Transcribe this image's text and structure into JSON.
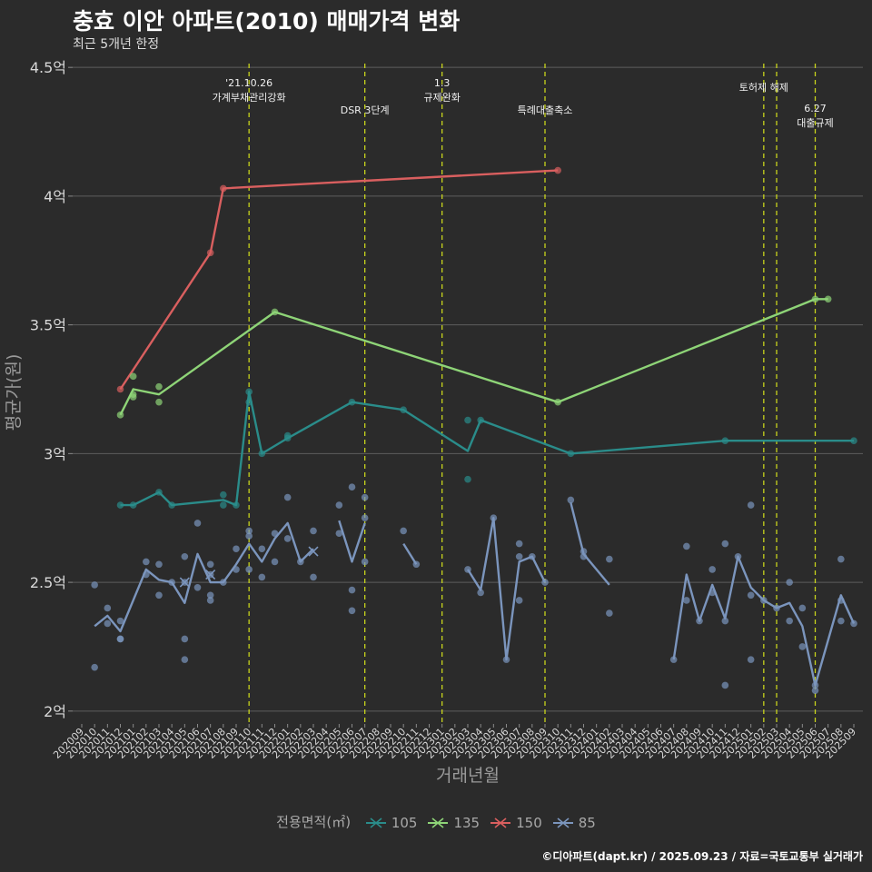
{
  "header": {
    "title": "충효 이안 아파트(2010) 매매가격 변화",
    "subtitle": "최근 5개년 한정"
  },
  "caption": "©디아파트(dapt.kr) / 2025.09.23 / 자료=국토교통부 실거래가",
  "legend": {
    "title": "전용면적(㎡)",
    "items": [
      {
        "label": "105",
        "color": "#2a8c8a"
      },
      {
        "label": "135",
        "color": "#8ed477"
      },
      {
        "label": "150",
        "color": "#d95f5f"
      },
      {
        "label": "85",
        "color": "#7b95bd"
      }
    ]
  },
  "chart_data": {
    "type": "line",
    "title": "충효 이안 아파트(2010) 매매가격 변화",
    "subtitle": "최근 5개년 한정",
    "xlabel": "거래년월",
    "ylabel": "평균가(원)",
    "ylim": [
      1.95,
      4.55
    ],
    "yticks": [
      2,
      2.5,
      3,
      3.5,
      4,
      4.5
    ],
    "ytick_labels": [
      "2억",
      "2.5억",
      "3억",
      "3.5억",
      "4억",
      "4.5억"
    ],
    "x_categories": [
      "202009",
      "202010",
      "202011",
      "202012",
      "202101",
      "202102",
      "202103",
      "202104",
      "202105",
      "202106",
      "202107",
      "202108",
      "202109",
      "202110",
      "202111",
      "202112",
      "202201",
      "202202",
      "202203",
      "202204",
      "202205",
      "202206",
      "202207",
      "202208",
      "202209",
      "202210",
      "202211",
      "202212",
      "202301",
      "202302",
      "202303",
      "202304",
      "202305",
      "202306",
      "202307",
      "202308",
      "202309",
      "202310",
      "202311",
      "202312",
      "202401",
      "202402",
      "202403",
      "202404",
      "202405",
      "202406",
      "202407",
      "202408",
      "202409",
      "202410",
      "202411",
      "202412",
      "202501",
      "202502",
      "202503",
      "202504",
      "202505",
      "202506",
      "202507",
      "202508",
      "202509"
    ],
    "grid": true,
    "legend_position": "bottom",
    "events": [
      {
        "x": "202110",
        "label": "'21.10.26\n가계부채관리강화"
      },
      {
        "x": "202207",
        "label": "DSR 3단계"
      },
      {
        "x": "202301",
        "label": "1.3\n규제완화"
      },
      {
        "x": "202309",
        "label": "특례대출축소"
      },
      {
        "x": "202502",
        "label": "토허제 해제"
      },
      {
        "x": "202503",
        "label": ""
      },
      {
        "x": "202506",
        "label": "6.27\n대출규제"
      }
    ],
    "series": [
      {
        "name": "105",
        "color": "#2a8c8a",
        "line": [
          [
            "202012",
            2.8
          ],
          [
            "202101",
            2.8
          ],
          [
            "202103",
            2.85
          ],
          [
            "202104",
            2.8
          ],
          [
            "202108",
            2.82
          ],
          [
            "202109",
            2.8
          ],
          [
            "202110",
            3.24
          ],
          [
            "202111",
            3.0
          ],
          [
            "202201",
            3.06
          ],
          [
            "202206",
            3.2
          ],
          [
            "202210",
            3.17
          ],
          [
            "202303",
            3.01
          ],
          [
            "202304",
            3.13
          ],
          [
            "202311",
            3.0
          ],
          [
            "202411",
            3.05
          ],
          [
            "202509",
            3.05
          ]
        ],
        "points": [
          [
            "202012",
            2.8
          ],
          [
            "202101",
            2.8
          ],
          [
            "202103",
            2.85
          ],
          [
            "202104",
            2.8
          ],
          [
            "202108",
            2.84
          ],
          [
            "202108",
            2.8
          ],
          [
            "202109",
            2.8
          ],
          [
            "202110",
            3.24
          ],
          [
            "202110",
            3.2
          ],
          [
            "202111",
            3.0
          ],
          [
            "202201",
            3.07
          ],
          [
            "202201",
            3.06
          ],
          [
            "202206",
            3.2
          ],
          [
            "202210",
            3.17
          ],
          [
            "202303",
            3.13
          ],
          [
            "202303",
            2.9
          ],
          [
            "202304",
            3.13
          ],
          [
            "202311",
            3.0
          ],
          [
            "202411",
            3.05
          ],
          [
            "202509",
            3.05
          ]
        ]
      },
      {
        "name": "135",
        "color": "#8ed477",
        "line": [
          [
            "202012",
            3.15
          ],
          [
            "202101",
            3.25
          ],
          [
            "202103",
            3.23
          ],
          [
            "202112",
            3.55
          ],
          [
            "202310",
            3.2
          ],
          [
            "202506",
            3.6
          ],
          [
            "202507",
            3.6
          ]
        ],
        "points": [
          [
            "202012",
            3.15
          ],
          [
            "202101",
            3.3
          ],
          [
            "202101",
            3.23
          ],
          [
            "202101",
            3.22
          ],
          [
            "202103",
            3.26
          ],
          [
            "202103",
            3.2
          ],
          [
            "202112",
            3.55
          ],
          [
            "202310",
            3.2
          ],
          [
            "202506",
            3.6
          ],
          [
            "202507",
            3.6
          ]
        ]
      },
      {
        "name": "150",
        "color": "#d95f5f",
        "line": [
          [
            "202012",
            3.25
          ],
          [
            "202107",
            3.78
          ],
          [
            "202108",
            4.03
          ],
          [
            "202310",
            4.1
          ]
        ],
        "points": [
          [
            "202012",
            3.25
          ],
          [
            "202107",
            3.78
          ],
          [
            "202108",
            4.03
          ],
          [
            "202310",
            4.1
          ]
        ]
      },
      {
        "name": "85",
        "color": "#7b95bd",
        "segments": [
          [
            [
              "202010",
              2.33
            ],
            [
              "202011",
              2.37
            ],
            [
              "202012",
              2.31
            ],
            [
              "202102",
              2.55
            ],
            [
              "202103",
              2.51
            ],
            [
              "202104",
              2.5
            ],
            [
              "202105",
              2.42
            ],
            [
              "202106",
              2.61
            ],
            [
              "202107",
              2.5
            ],
            [
              "202108",
              2.5
            ],
            [
              "202109",
              2.57
            ],
            [
              "202110",
              2.65
            ],
            [
              "202111",
              2.58
            ],
            [
              "202112",
              2.67
            ],
            [
              "202201",
              2.73
            ],
            [
              "202202",
              2.58
            ],
            [
              "202203",
              2.63
            ]
          ],
          [
            [
              "202205",
              2.74
            ],
            [
              "202206",
              2.58
            ],
            [
              "202207",
              2.73
            ]
          ],
          [
            [
              "202210",
              2.65
            ],
            [
              "202211",
              2.57
            ]
          ],
          [
            [
              "202303",
              2.55
            ],
            [
              "202304",
              2.47
            ],
            [
              "202305",
              2.75
            ],
            [
              "202306",
              2.2
            ],
            [
              "202307",
              2.58
            ],
            [
              "202308",
              2.6
            ],
            [
              "202309",
              2.5
            ]
          ],
          [
            [
              "202311",
              2.81
            ],
            [
              "202312",
              2.61
            ],
            [
              "202402",
              2.49
            ]
          ],
          [
            [
              "202407",
              2.2
            ],
            [
              "202408",
              2.53
            ],
            [
              "202409",
              2.35
            ],
            [
              "202410",
              2.49
            ],
            [
              "202411",
              2.36
            ],
            [
              "202412",
              2.6
            ],
            [
              "202501",
              2.48
            ],
            [
              "202502",
              2.43
            ],
            [
              "202503",
              2.4
            ],
            [
              "202504",
              2.42
            ],
            [
              "202505",
              2.33
            ],
            [
              "202506",
              2.1
            ],
            [
              "202508",
              2.45
            ],
            [
              "202509",
              2.34
            ]
          ]
        ],
        "points": [
          [
            "202010",
            2.49
          ],
          [
            "202010",
            2.17
          ],
          [
            "202011",
            2.4
          ],
          [
            "202011",
            2.34
          ],
          [
            "202012",
            2.35
          ],
          [
            "202012",
            2.28
          ],
          [
            "202012",
            2.28
          ],
          [
            "202102",
            2.58
          ],
          [
            "202102",
            2.53
          ],
          [
            "202103",
            2.57
          ],
          [
            "202103",
            2.45
          ],
          [
            "202104",
            2.5
          ],
          [
            "202105",
            2.6
          ],
          [
            "202105",
            2.5
          ],
          [
            "202105",
            2.28
          ],
          [
            "202105",
            2.2
          ],
          [
            "202106",
            2.73
          ],
          [
            "202106",
            2.48
          ],
          [
            "202107",
            2.57
          ],
          [
            "202107",
            2.45
          ],
          [
            "202107",
            2.43
          ],
          [
            "202107",
            2.53
          ],
          [
            "202108",
            2.5
          ],
          [
            "202109",
            2.63
          ],
          [
            "202109",
            2.55
          ],
          [
            "202110",
            2.7
          ],
          [
            "202110",
            2.68
          ],
          [
            "202110",
            2.55
          ],
          [
            "202111",
            2.63
          ],
          [
            "202111",
            2.52
          ],
          [
            "202112",
            2.69
          ],
          [
            "202112",
            2.58
          ],
          [
            "202201",
            2.83
          ],
          [
            "202201",
            2.67
          ],
          [
            "202202",
            2.58
          ],
          [
            "202203",
            2.7
          ],
          [
            "202203",
            2.52
          ],
          [
            "202205",
            2.8
          ],
          [
            "202205",
            2.69
          ],
          [
            "202206",
            2.87
          ],
          [
            "202206",
            2.47
          ],
          [
            "202206",
            2.39
          ],
          [
            "202207",
            2.83
          ],
          [
            "202207",
            2.75
          ],
          [
            "202207",
            2.58
          ],
          [
            "202210",
            2.7
          ],
          [
            "202211",
            2.57
          ],
          [
            "202303",
            2.55
          ],
          [
            "202304",
            2.46
          ],
          [
            "202305",
            2.75
          ],
          [
            "202306",
            2.2
          ],
          [
            "202307",
            2.65
          ],
          [
            "202307",
            2.6
          ],
          [
            "202307",
            2.43
          ],
          [
            "202308",
            2.6
          ],
          [
            "202309",
            2.5
          ],
          [
            "202311",
            2.82
          ],
          [
            "202312",
            2.62
          ],
          [
            "202312",
            2.6
          ],
          [
            "202402",
            2.59
          ],
          [
            "202402",
            2.38
          ],
          [
            "202407",
            2.2
          ],
          [
            "202408",
            2.64
          ],
          [
            "202408",
            2.43
          ],
          [
            "202409",
            2.35
          ],
          [
            "202410",
            2.55
          ],
          [
            "202410",
            2.46
          ],
          [
            "202411",
            2.65
          ],
          [
            "202411",
            2.35
          ],
          [
            "202411",
            2.1
          ],
          [
            "202412",
            2.6
          ],
          [
            "202501",
            2.8
          ],
          [
            "202501",
            2.45
          ],
          [
            "202501",
            2.2
          ],
          [
            "202502",
            2.43
          ],
          [
            "202503",
            2.4
          ],
          [
            "202504",
            2.5
          ],
          [
            "202504",
            2.35
          ],
          [
            "202505",
            2.4
          ],
          [
            "202505",
            2.25
          ],
          [
            "202506",
            2.1
          ],
          [
            "202506",
            2.08
          ],
          [
            "202508",
            2.59
          ],
          [
            "202508",
            2.35
          ],
          [
            "202508",
            2.43
          ],
          [
            "202509",
            2.34
          ]
        ],
        "cross_points": [
          [
            "202105",
            2.5
          ],
          [
            "202107",
            2.53
          ],
          [
            "202203",
            2.62
          ]
        ]
      }
    ]
  }
}
